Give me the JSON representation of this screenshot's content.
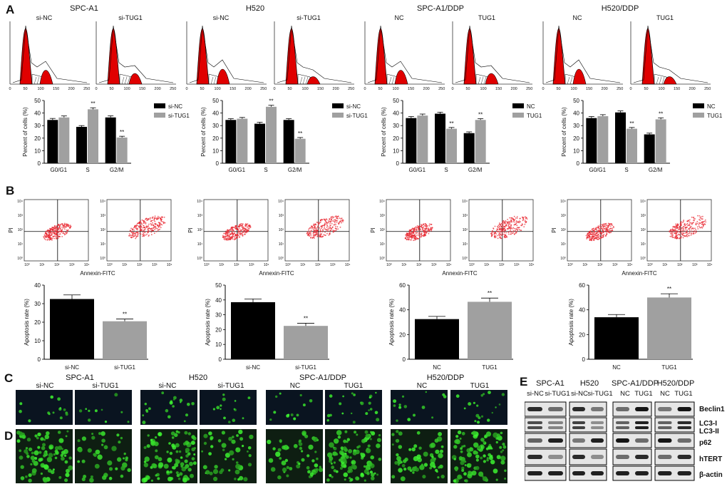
{
  "panels": {
    "A": "A",
    "B": "B",
    "C": "C",
    "D": "D",
    "E": "E"
  },
  "cells": [
    {
      "name": "SPC-A1",
      "ctrl": "si-NC",
      "treat": "si-TUG1"
    },
    {
      "name": "H520",
      "ctrl": "si-NC",
      "treat": "si-TUG1"
    },
    {
      "name": "SPC-A1/DDP",
      "ctrl": "NC",
      "treat": "TUG1"
    },
    {
      "name": "H520/DDP",
      "ctrl": "NC",
      "treat": "TUG1"
    }
  ],
  "histogram_axis": {
    "ticks": [
      "0",
      "50",
      "100",
      "150",
      "200",
      "250"
    ]
  },
  "flow_axis": {
    "xlabel": "Annexin-FITC",
    "ylabel": "PI",
    "ticks": [
      "10⁰",
      "10¹",
      "10²",
      "10³",
      "10⁴"
    ]
  },
  "significance": "**",
  "chart_data": [
    {
      "type": "bar",
      "panel": "A",
      "cell": "SPC-A1",
      "ylabel": "Percent of cells (%)",
      "ylim": [
        0,
        50
      ],
      "yticks": [
        "0",
        "10",
        "20",
        "30",
        "40",
        "50"
      ],
      "categories": [
        "G0/G1",
        "S",
        "G2/M"
      ],
      "series": [
        {
          "name": "si-NC",
          "color": "#000000",
          "values": [
            34.5,
            29,
            36.5
          ],
          "errors": [
            1.2,
            1.0,
            1.3
          ]
        },
        {
          "name": "si-TUG1",
          "color": "#a0a0a0",
          "values": [
            36.5,
            43,
            20.5
          ],
          "errors": [
            1.2,
            1.2,
            1.0
          ]
        }
      ],
      "sig": [
        [],
        [
          "1"
        ],
        [
          "1"
        ]
      ]
    },
    {
      "type": "bar",
      "panel": "A",
      "cell": "H520",
      "ylabel": "Percent of cells (%)",
      "ylim": [
        0,
        50
      ],
      "yticks": [
        "0",
        "10",
        "20",
        "30",
        "40",
        "50"
      ],
      "categories": [
        "G0/G1",
        "S",
        "G2/M"
      ],
      "series": [
        {
          "name": "si-NC",
          "color": "#000000",
          "values": [
            34.5,
            31.5,
            34.5
          ],
          "errors": [
            1.0,
            1.2,
            1.0
          ]
        },
        {
          "name": "si-TUG1",
          "color": "#a0a0a0",
          "values": [
            35.5,
            45,
            19.5
          ],
          "errors": [
            1.0,
            1.2,
            1.0
          ]
        }
      ],
      "sig": [
        [],
        [
          "1"
        ],
        [
          "1"
        ]
      ]
    },
    {
      "type": "bar",
      "panel": "A",
      "cell": "SPC-A1/DDP",
      "ylabel": "Percent of cells (%)",
      "ylim": [
        0,
        50
      ],
      "yticks": [
        "0",
        "10",
        "20",
        "30",
        "40",
        "50"
      ],
      "categories": [
        "G0/G1",
        "S",
        "G2/M"
      ],
      "series": [
        {
          "name": "NC",
          "color": "#000000",
          "values": [
            36,
            39.5,
            24
          ],
          "errors": [
            1.2,
            1.2,
            1.0
          ]
        },
        {
          "name": "TUG1",
          "color": "#a0a0a0",
          "values": [
            38,
            27.5,
            34.5
          ],
          "errors": [
            1.2,
            1.0,
            1.0
          ]
        }
      ],
      "sig": [
        [],
        [
          "1"
        ],
        [
          "1"
        ]
      ]
    },
    {
      "type": "bar",
      "panel": "A",
      "cell": "H520/DDP",
      "ylabel": "Percent of cells (%)",
      "ylim": [
        0,
        50
      ],
      "yticks": [
        "0",
        "10",
        "20",
        "30",
        "40",
        "50"
      ],
      "categories": [
        "G0/G1",
        "S",
        "G2/M"
      ],
      "series": [
        {
          "name": "NC",
          "color": "#000000",
          "values": [
            36,
            40.5,
            23
          ],
          "errors": [
            1.2,
            1.2,
            1.0
          ]
        },
        {
          "name": "TUG1",
          "color": "#a0a0a0",
          "values": [
            37.5,
            27.5,
            35
          ],
          "errors": [
            1.2,
            1.0,
            1.2
          ]
        }
      ],
      "sig": [
        [],
        [
          "1"
        ],
        [
          "1"
        ]
      ]
    },
    {
      "type": "bar",
      "panel": "B",
      "cell": "SPC-A1",
      "ylabel": "Apoptosis rate (%)",
      "ylim": [
        0,
        40
      ],
      "yticks": [
        "0",
        "10",
        "20",
        "30",
        "40"
      ],
      "categories": [
        "si-NC",
        "si-TUG1"
      ],
      "values": [
        32.5,
        20.5
      ],
      "errors": [
        2.2,
        1.2
      ],
      "colors": [
        "#000000",
        "#a0a0a0"
      ],
      "sig": [
        false,
        true
      ]
    },
    {
      "type": "bar",
      "panel": "B",
      "cell": "H520",
      "ylabel": "Apoptosis rate (%)",
      "ylim": [
        0,
        50
      ],
      "yticks": [
        "0",
        "10",
        "20",
        "30",
        "40",
        "50"
      ],
      "categories": [
        "si-NC",
        "si-TUG1"
      ],
      "values": [
        38.5,
        22.5
      ],
      "errors": [
        2.2,
        1.8
      ],
      "colors": [
        "#000000",
        "#a0a0a0"
      ],
      "sig": [
        false,
        true
      ]
    },
    {
      "type": "bar",
      "panel": "B",
      "cell": "SPC-A1/DDP",
      "ylabel": "Apoptosis rate (%)",
      "ylim": [
        0,
        60
      ],
      "yticks": [
        "0",
        "20",
        "40",
        "60"
      ],
      "categories": [
        "NC",
        "TUG1"
      ],
      "values": [
        32.5,
        46.5
      ],
      "errors": [
        2.2,
        3.0
      ],
      "colors": [
        "#000000",
        "#a0a0a0"
      ],
      "sig": [
        false,
        true
      ]
    },
    {
      "type": "bar",
      "panel": "B",
      "cell": "H520/DDP",
      "ylabel": "Apoptosis rate (%)",
      "ylim": [
        0,
        60
      ],
      "yticks": [
        "0",
        "20",
        "40",
        "60"
      ],
      "categories": [
        "NC",
        "TUG1"
      ],
      "values": [
        34,
        50
      ],
      "errors": [
        2.2,
        3.0
      ],
      "colors": [
        "#000000",
        "#a0a0a0"
      ],
      "sig": [
        false,
        true
      ]
    }
  ],
  "western": {
    "cells": [
      "SPC-A1",
      "H520",
      "SPC-A1/DDP",
      "H520/DDP"
    ],
    "lanes": [
      [
        "si-NC",
        "si-TUG1"
      ],
      [
        "si-NC",
        "si-TUG1"
      ],
      [
        "NC",
        "TUG1"
      ],
      [
        "NC",
        "TUG1"
      ]
    ],
    "proteins": [
      "Beclin1",
      "LC3-I",
      "LC3-II",
      "p62",
      "hTERT",
      "β-actin"
    ]
  }
}
